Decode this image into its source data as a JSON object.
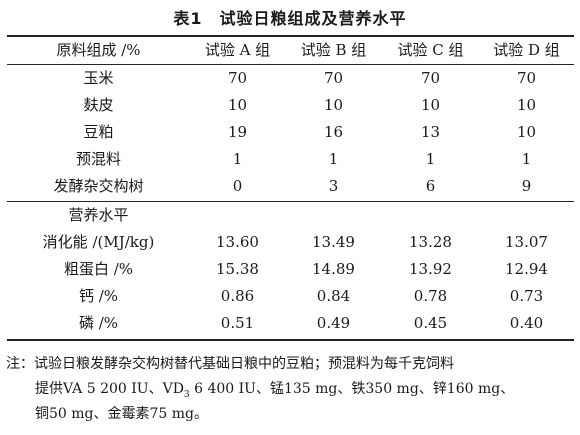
{
  "title": "表1　试验日粮组成及营养水平",
  "header": [
    "原料组成 /%",
    "试验 A 组",
    "试验 B 组",
    "试验 C 组",
    "试验 D 组"
  ],
  "composition_rows": [
    [
      "玉米",
      "70",
      "70",
      "70",
      "70"
    ],
    [
      "麸皮",
      "10",
      "10",
      "10",
      "10"
    ],
    [
      "豆粕",
      "19",
      "16",
      "13",
      "10"
    ],
    [
      "预混料",
      "1",
      "1",
      "1",
      "1"
    ],
    [
      "发酵杂交构树",
      "0",
      "3",
      "6",
      "9"
    ]
  ],
  "nutrition_heading": "营养水平",
  "nutrition_rows": [
    [
      "消化能 /(MJ/kg)",
      "13.60",
      "13.49",
      "13.28",
      "13.07"
    ],
    [
      "粗蛋白 /%",
      "15.38",
      "14.89",
      "13.92",
      "12.94"
    ],
    [
      "钙 /%",
      "0.86",
      "0.84",
      "0.78",
      "0.73"
    ],
    [
      "磷 /%",
      "0.51",
      "0.49",
      "0.45",
      "0.40"
    ]
  ],
  "note": {
    "line1": "注：试验日粮发酵杂交构树替代基础日粮中的豆粕；预混料为每千克饲料",
    "line2_a": "提供VA 5 200 IU、VD",
    "line2_sub": "3",
    "line2_b": " 6 400 IU、锰135 mg、铁350 mg、锌160 mg、",
    "line3": "铜50 mg、金霉素75 mg。"
  }
}
